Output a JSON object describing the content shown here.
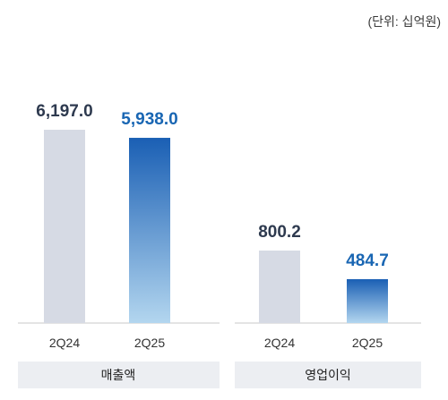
{
  "unit_label": "(단위: 십억원)",
  "colors": {
    "prior_bar": "#d6dae4",
    "current_top": "#1a5fb4",
    "current_bottom": "#b3d6ef",
    "prior_text": "#2e3a4f",
    "current_text": "#1966b3",
    "panel_bg": "#eceef2",
    "baseline": "#c9c9c9"
  },
  "chart_data": [
    {
      "type": "bar",
      "group_label": "매출액",
      "categories": [
        "2Q24",
        "2Q25"
      ],
      "values": [
        6197.0,
        5938.0
      ],
      "value_labels": [
        "6,197.0",
        "5,938.0"
      ],
      "highlight_index": 1
    },
    {
      "type": "bar",
      "group_label": "영업이익",
      "categories": [
        "2Q24",
        "2Q25"
      ],
      "values": [
        800.2,
        484.7
      ],
      "value_labels": [
        "800.2",
        "484.7"
      ],
      "highlight_index": 1
    }
  ]
}
